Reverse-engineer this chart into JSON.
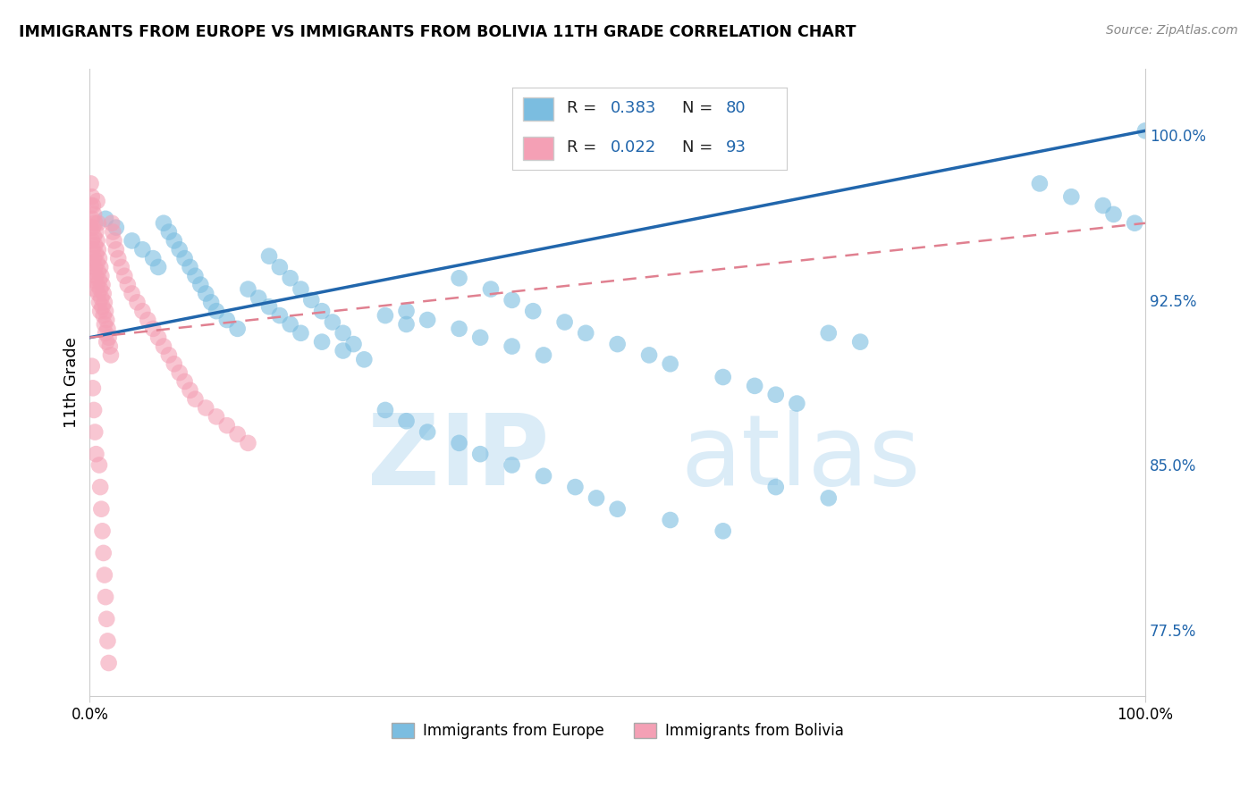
{
  "title": "IMMIGRANTS FROM EUROPE VS IMMIGRANTS FROM BOLIVIA 11TH GRADE CORRELATION CHART",
  "source": "Source: ZipAtlas.com",
  "ylabel": "11th Grade",
  "y_ticks": [
    0.775,
    0.85,
    0.925,
    1.0
  ],
  "y_tick_labels": [
    "77.5%",
    "85.0%",
    "92.5%",
    "100.0%"
  ],
  "xlim": [
    0.0,
    1.0
  ],
  "ylim": [
    0.745,
    1.03
  ],
  "watermark_zip": "ZIP",
  "watermark_atlas": "atlas",
  "color_europe": "#7bbde0",
  "color_bolivia": "#f4a0b5",
  "trend_europe_color": "#2166ac",
  "trend_bolivia_color": "#e08090",
  "background_color": "#ffffff",
  "trend_eu_x0": 0.0,
  "trend_eu_y0": 0.908,
  "trend_eu_x1": 1.0,
  "trend_eu_y1": 1.002,
  "trend_bo_x0": 0.0,
  "trend_bo_y0": 0.908,
  "trend_bo_x1": 1.0,
  "trend_bo_y1": 0.96,
  "europe_x": [
    0.015,
    0.025,
    0.04,
    0.05,
    0.06,
    0.065,
    0.07,
    0.075,
    0.08,
    0.085,
    0.09,
    0.095,
    0.1,
    0.105,
    0.11,
    0.115,
    0.12,
    0.13,
    0.14,
    0.15,
    0.16,
    0.17,
    0.18,
    0.19,
    0.2,
    0.22,
    0.24,
    0.26,
    0.28,
    0.3,
    0.17,
    0.18,
    0.19,
    0.2,
    0.21,
    0.22,
    0.23,
    0.24,
    0.25,
    0.3,
    0.32,
    0.35,
    0.37,
    0.4,
    0.43,
    0.35,
    0.38,
    0.4,
    0.42,
    0.45,
    0.47,
    0.5,
    0.53,
    0.55,
    0.6,
    0.63,
    0.65,
    0.67,
    0.7,
    0.73,
    0.28,
    0.3,
    0.32,
    0.35,
    0.37,
    0.4,
    0.43,
    0.46,
    0.48,
    0.5,
    0.55,
    0.6,
    0.65,
    0.7,
    0.9,
    0.93,
    0.96,
    0.97,
    0.99,
    1.0
  ],
  "europe_y": [
    0.962,
    0.958,
    0.952,
    0.948,
    0.944,
    0.94,
    0.96,
    0.956,
    0.952,
    0.948,
    0.944,
    0.94,
    0.936,
    0.932,
    0.928,
    0.924,
    0.92,
    0.916,
    0.912,
    0.93,
    0.926,
    0.922,
    0.918,
    0.914,
    0.91,
    0.906,
    0.902,
    0.898,
    0.918,
    0.914,
    0.945,
    0.94,
    0.935,
    0.93,
    0.925,
    0.92,
    0.915,
    0.91,
    0.905,
    0.92,
    0.916,
    0.912,
    0.908,
    0.904,
    0.9,
    0.935,
    0.93,
    0.925,
    0.92,
    0.915,
    0.91,
    0.905,
    0.9,
    0.896,
    0.89,
    0.886,
    0.882,
    0.878,
    0.91,
    0.906,
    0.875,
    0.87,
    0.865,
    0.86,
    0.855,
    0.85,
    0.845,
    0.84,
    0.835,
    0.83,
    0.825,
    0.82,
    0.84,
    0.835,
    0.978,
    0.972,
    0.968,
    0.964,
    0.96,
    1.002
  ],
  "bolivia_x": [
    0.001,
    0.001,
    0.001,
    0.002,
    0.002,
    0.002,
    0.002,
    0.003,
    0.003,
    0.003,
    0.003,
    0.004,
    0.004,
    0.004,
    0.004,
    0.005,
    0.005,
    0.005,
    0.005,
    0.006,
    0.006,
    0.006,
    0.007,
    0.007,
    0.007,
    0.008,
    0.008,
    0.008,
    0.009,
    0.009,
    0.009,
    0.01,
    0.01,
    0.01,
    0.011,
    0.011,
    0.012,
    0.012,
    0.013,
    0.013,
    0.014,
    0.014,
    0.015,
    0.015,
    0.016,
    0.016,
    0.017,
    0.018,
    0.019,
    0.02,
    0.021,
    0.022,
    0.023,
    0.025,
    0.027,
    0.03,
    0.033,
    0.036,
    0.04,
    0.045,
    0.05,
    0.055,
    0.06,
    0.065,
    0.07,
    0.075,
    0.08,
    0.085,
    0.09,
    0.095,
    0.1,
    0.11,
    0.12,
    0.13,
    0.14,
    0.15,
    0.002,
    0.003,
    0.004,
    0.005,
    0.006,
    0.007,
    0.008,
    0.009,
    0.01,
    0.011,
    0.012,
    0.013,
    0.014,
    0.015,
    0.016,
    0.017,
    0.018
  ],
  "bolivia_y": [
    0.978,
    0.968,
    0.958,
    0.972,
    0.962,
    0.952,
    0.942,
    0.968,
    0.958,
    0.948,
    0.938,
    0.964,
    0.954,
    0.944,
    0.934,
    0.96,
    0.95,
    0.94,
    0.93,
    0.956,
    0.946,
    0.936,
    0.952,
    0.942,
    0.932,
    0.948,
    0.938,
    0.928,
    0.944,
    0.934,
    0.924,
    0.94,
    0.93,
    0.92,
    0.936,
    0.926,
    0.932,
    0.922,
    0.928,
    0.918,
    0.924,
    0.914,
    0.92,
    0.91,
    0.916,
    0.906,
    0.912,
    0.908,
    0.904,
    0.9,
    0.96,
    0.956,
    0.952,
    0.948,
    0.944,
    0.94,
    0.936,
    0.932,
    0.928,
    0.924,
    0.92,
    0.916,
    0.912,
    0.908,
    0.904,
    0.9,
    0.896,
    0.892,
    0.888,
    0.884,
    0.88,
    0.876,
    0.872,
    0.868,
    0.864,
    0.86,
    0.895,
    0.885,
    0.875,
    0.865,
    0.855,
    0.97,
    0.96,
    0.85,
    0.84,
    0.83,
    0.82,
    0.81,
    0.8,
    0.79,
    0.78,
    0.77,
    0.76
  ]
}
